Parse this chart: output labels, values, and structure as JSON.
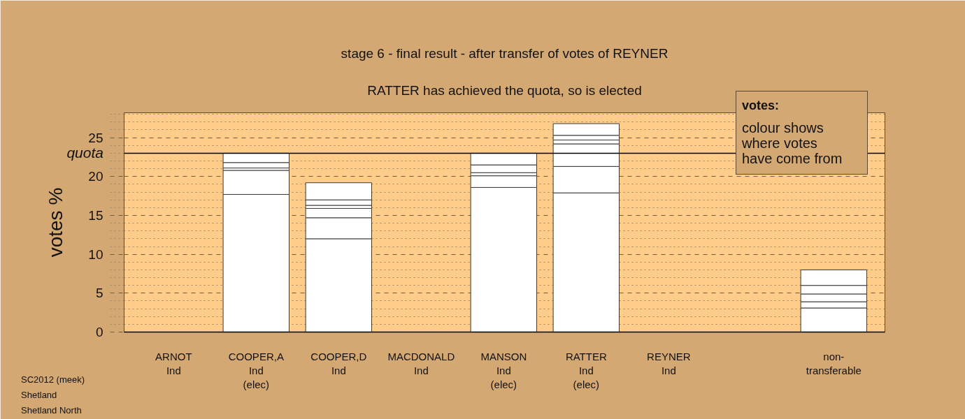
{
  "chart_data": {
    "type": "bar",
    "title": "stage 6 - final result - after transfer of votes of REYNER",
    "subtitle": "RATTER has achieved the quota, so is elected",
    "ylabel": "votes %",
    "categories": [
      "ARNOT\nInd",
      "COOPER,A\nInd\n(elec)",
      "COOPER,D\nInd",
      "MACDONALD\nInd",
      "MANSON\nInd\n(elec)",
      "RATTER\nInd\n(elec)",
      "REYNER\nInd",
      null,
      "non-\ntransferable"
    ],
    "stacked": true,
    "series": [
      {
        "color": "#ffffff",
        "values": [
          null,
          17.7,
          12.0,
          null,
          18.6,
          17.9,
          null,
          null,
          3.1
        ]
      },
      {
        "color": "#ffffff",
        "values": [
          null,
          3.1,
          2.7,
          null,
          1.5,
          3.4,
          null,
          null,
          0.8
        ]
      },
      {
        "color": "#ffffff",
        "values": [
          null,
          0.3,
          1.2,
          null,
          0.4,
          2.9,
          null,
          null,
          1.0
        ]
      },
      {
        "color": "#ffffff",
        "values": [
          null,
          0.7,
          0.4,
          null,
          1.0,
          0.5,
          null,
          null,
          1.1
        ]
      },
      {
        "color": "#ffffff",
        "values": [
          null,
          1.2,
          0.7,
          null,
          1.5,
          0.6,
          null,
          null,
          2.0
        ]
      },
      {
        "color": "#ffffff",
        "values": [
          null,
          null,
          2.2,
          null,
          null,
          1.5,
          null,
          null,
          null
        ]
      }
    ],
    "ylim": [
      0,
      28.2
    ],
    "yticks": [
      0,
      {
        "value": 1,
        "label": null
      },
      {
        "value": 2,
        "label": null
      },
      {
        "value": 3,
        "label": null
      },
      {
        "value": 4,
        "label": null
      },
      5,
      {
        "value": 6,
        "label": null
      },
      {
        "value": 7,
        "label": null
      },
      {
        "value": 8,
        "label": null
      },
      {
        "value": 9,
        "label": null
      },
      10,
      {
        "value": 11,
        "label": null
      },
      {
        "value": 12,
        "label": null
      },
      {
        "value": 13,
        "label": null
      },
      {
        "value": 14,
        "label": null
      },
      15,
      {
        "value": 16,
        "label": null
      },
      {
        "value": 17,
        "label": null
      },
      {
        "value": 18,
        "label": null
      },
      {
        "value": 19,
        "label": null
      },
      20,
      {
        "value": 21,
        "label": null
      },
      {
        "value": 22,
        "label": null
      },
      {
        "value": 23,
        "label": null
      },
      {
        "value": 24,
        "label": null
      },
      25,
      {
        "value": 26,
        "label": null
      },
      {
        "value": 27,
        "label": null
      },
      {
        "value": 28,
        "label": null
      }
    ],
    "grid": "y",
    "ref_lines": [
      {
        "axis": "y",
        "value": 23.0,
        "label": "quota",
        "color": "#000000"
      }
    ],
    "annotations": [
      "votes:",
      "colour shows\nwhere votes\nhave come from",
      "SC2012 (meek)\nShetland\nShetland North"
    ]
  }
}
